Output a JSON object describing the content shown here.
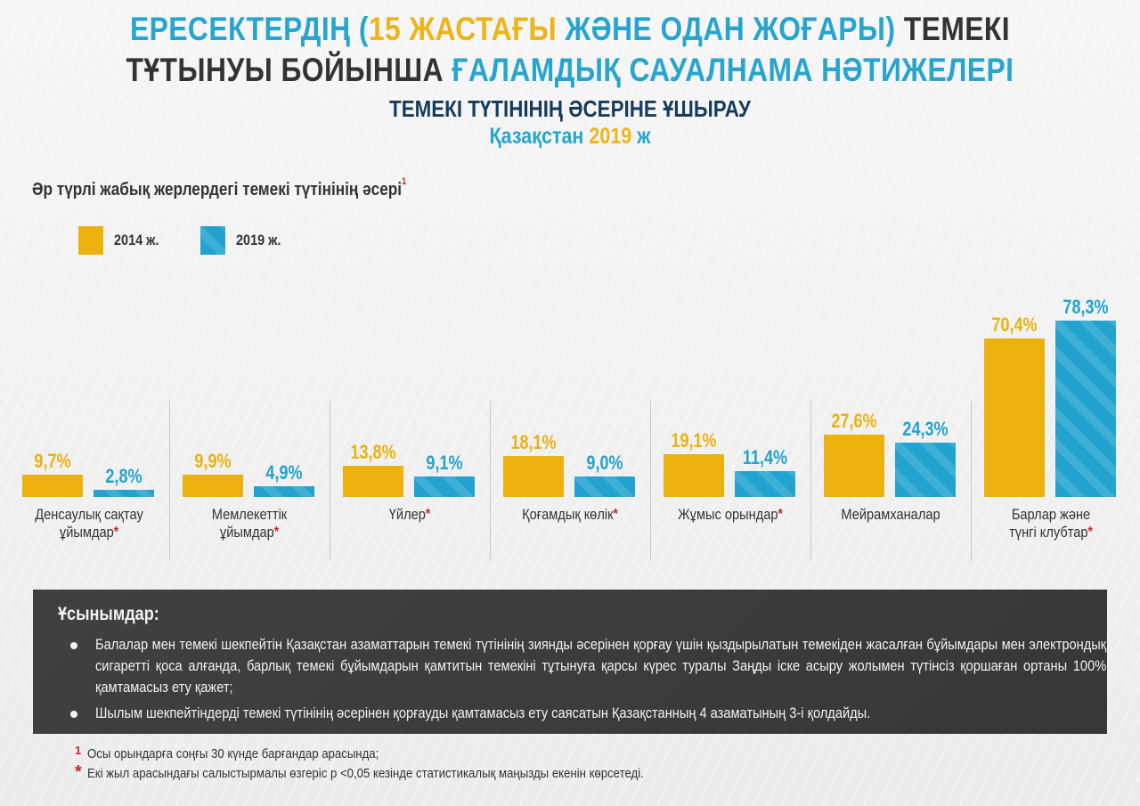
{
  "header": {
    "title_line1": [
      {
        "text": "ЕРЕСЕКТЕРДІҢ  (",
        "color": "blue"
      },
      {
        "text": "15 ЖАСТАҒЫ ",
        "color": "yellow"
      },
      {
        "text": "ЖӘНЕ ОДАН ЖОҒАРЫ) ",
        "color": "blue"
      },
      {
        "text": "ТЕМЕКІ",
        "color": "dark"
      }
    ],
    "title_line2": [
      {
        "text": "ТҰТЫНУЫ БОЙЫНША ",
        "color": "dark"
      },
      {
        "text": "ҒАЛАМДЫҚ САУАЛНАМА НӘТИЖЕЛЕРІ",
        "color": "blue"
      }
    ],
    "subtitle": "ТЕМЕКІ ТҮТІНІНІҢ ӘСЕРІНЕ ҰШЫРАУ",
    "country": "Қазақстан",
    "year": "2019",
    "year_suffix": "ж"
  },
  "colors": {
    "blue": "#28a5cf",
    "yellow": "#edb51a",
    "dark": "#333333",
    "navy": "#173b5a",
    "bar_2014": "#ebb20e",
    "bar_2019": "#22a3cf",
    "asterisk": "#c0262d",
    "panel": "#3a3a38"
  },
  "chart_data": {
    "type": "bar",
    "title": "Әр түрлі  жабық жерлердегі темекі түтінінің әсері",
    "title_footnote": "1",
    "xlabel": "",
    "ylabel": "",
    "ylim": [
      0,
      80
    ],
    "grid": false,
    "legend_position": "top-left",
    "categories": [
      {
        "label": [
          "Денсаулық сақтау",
          "ұйымдар"
        ],
        "significant": true
      },
      {
        "label": [
          "Мемлекеттік",
          "ұйымдар"
        ],
        "significant": true
      },
      {
        "label": [
          "Үйлер"
        ],
        "significant": true
      },
      {
        "label": [
          "Қоғамдық көлік"
        ],
        "significant": true
      },
      {
        "label": [
          "Жұмыс орындар"
        ],
        "significant": true
      },
      {
        "label": [
          "Мейрамханалар"
        ],
        "significant": false
      },
      {
        "label": [
          "Барлар және",
          "түнгі клубтар"
        ],
        "significant": true
      }
    ],
    "series": [
      {
        "name": "2014 ж.",
        "values": [
          9.7,
          9.9,
          13.8,
          18.1,
          19.1,
          27.6,
          70.4
        ],
        "labels": [
          "9,7%",
          "9,9%",
          "13,8%",
          "18,1%",
          "19,1%",
          "27,6%",
          "70,4%"
        ]
      },
      {
        "name": "2019 ж.",
        "values": [
          2.8,
          4.9,
          9.1,
          9.0,
          11.4,
          24.3,
          78.3
        ],
        "labels": [
          "2,8%",
          "4,9%",
          "9,1%",
          "9,0%",
          "11,4%",
          "24,3%",
          "78,3%"
        ]
      }
    ],
    "significance_mark": "*"
  },
  "recommendations": {
    "title": "Ұсынымдар:",
    "items": [
      "Балалар мен темекі шекпейтін Қазақстан азаматтарын темекі түтінінің зиянды әсерінен қорғау үшін қыздырылатын темекіден жасалған бұйымдары мен электрондық сигаретті қоса алғанда, барлық темекі бұйымдарын қамтитын темекіні тұтынуға қарсы күрес туралы Заңды іске асыру жолымен түтінсіз қоршаған ортаны 100% қамтамасыз ету қажет;",
      "Шылым шекпейтіндерді  темекі түтінінің әсерінен қорғауды қамтамасыз ету саясатын Қазақстанның 4 азаматының 3-і қолдайды."
    ]
  },
  "footnotes": [
    {
      "mark": "1",
      "text": "Осы орындарға соңғы 30 күнде барғандар арасында;"
    },
    {
      "mark": "*",
      "text": "Екі жыл арасындағы салыстырмалы өзгеріс p <0,05 кезінде статистикалық маңызды екенін көрсетеді."
    }
  ]
}
